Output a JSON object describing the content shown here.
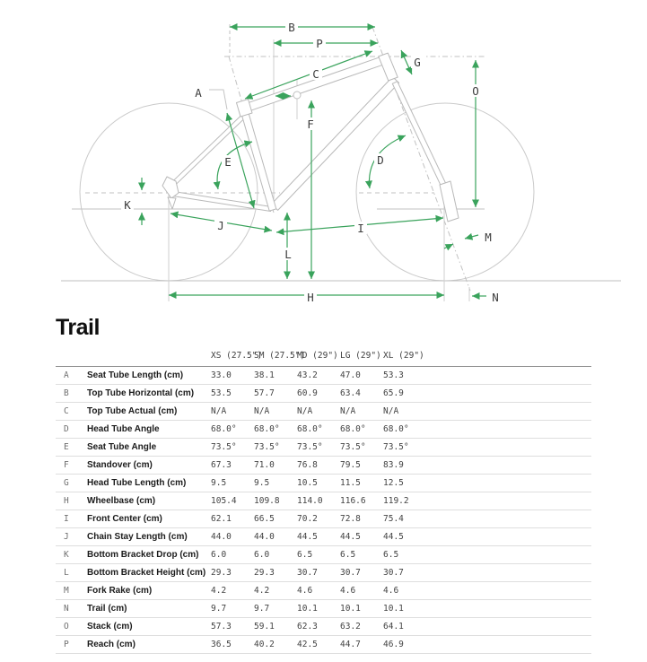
{
  "title": "Trail",
  "diagram": {
    "arrow_color": "#3aa35c",
    "labels": [
      "A",
      "B",
      "C",
      "D",
      "E",
      "F",
      "G",
      "H",
      "I",
      "J",
      "K",
      "L",
      "M",
      "N",
      "O",
      "P"
    ]
  },
  "table": {
    "columns": [
      "XS (27.5\")",
      "SM (27.5\")",
      "MD (29\")",
      "LG (29\")",
      "XL (29\")"
    ],
    "rows": [
      {
        "key": "A",
        "label": "Seat Tube Length (cm)",
        "values": [
          "33.0",
          "38.1",
          "43.2",
          "47.0",
          "53.3"
        ]
      },
      {
        "key": "B",
        "label": "Top Tube Horizontal (cm)",
        "values": [
          "53.5",
          "57.7",
          "60.9",
          "63.4",
          "65.9"
        ]
      },
      {
        "key": "C",
        "label": "Top Tube Actual (cm)",
        "values": [
          "N/A",
          "N/A",
          "N/A",
          "N/A",
          "N/A"
        ]
      },
      {
        "key": "D",
        "label": "Head Tube Angle",
        "values": [
          "68.0°",
          "68.0°",
          "68.0°",
          "68.0°",
          "68.0°"
        ]
      },
      {
        "key": "E",
        "label": "Seat Tube Angle",
        "values": [
          "73.5°",
          "73.5°",
          "73.5°",
          "73.5°",
          "73.5°"
        ]
      },
      {
        "key": "F",
        "label": "Standover (cm)",
        "values": [
          "67.3",
          "71.0",
          "76.8",
          "79.5",
          "83.9"
        ]
      },
      {
        "key": "G",
        "label": "Head Tube Length (cm)",
        "values": [
          "9.5",
          "9.5",
          "10.5",
          "11.5",
          "12.5"
        ]
      },
      {
        "key": "H",
        "label": "Wheelbase (cm)",
        "values": [
          "105.4",
          "109.8",
          "114.0",
          "116.6",
          "119.2"
        ]
      },
      {
        "key": "I",
        "label": "Front Center (cm)",
        "values": [
          "62.1",
          "66.5",
          "70.2",
          "72.8",
          "75.4"
        ]
      },
      {
        "key": "J",
        "label": "Chain Stay Length (cm)",
        "values": [
          "44.0",
          "44.0",
          "44.5",
          "44.5",
          "44.5"
        ]
      },
      {
        "key": "K",
        "label": "Bottom Bracket Drop (cm)",
        "values": [
          "6.0",
          "6.0",
          "6.5",
          "6.5",
          "6.5"
        ]
      },
      {
        "key": "L",
        "label": "Bottom Bracket Height (cm)",
        "values": [
          "29.3",
          "29.3",
          "30.7",
          "30.7",
          "30.7"
        ]
      },
      {
        "key": "M",
        "label": "Fork Rake (cm)",
        "values": [
          "4.2",
          "4.2",
          "4.6",
          "4.6",
          "4.6"
        ]
      },
      {
        "key": "N",
        "label": "Trail (cm)",
        "values": [
          "9.7",
          "9.7",
          "10.1",
          "10.1",
          "10.1"
        ]
      },
      {
        "key": "O",
        "label": "Stack (cm)",
        "values": [
          "57.3",
          "59.1",
          "62.3",
          "63.2",
          "64.1"
        ]
      },
      {
        "key": "P",
        "label": "Reach (cm)",
        "values": [
          "36.5",
          "40.2",
          "42.5",
          "44.7",
          "46.9"
        ]
      }
    ]
  }
}
